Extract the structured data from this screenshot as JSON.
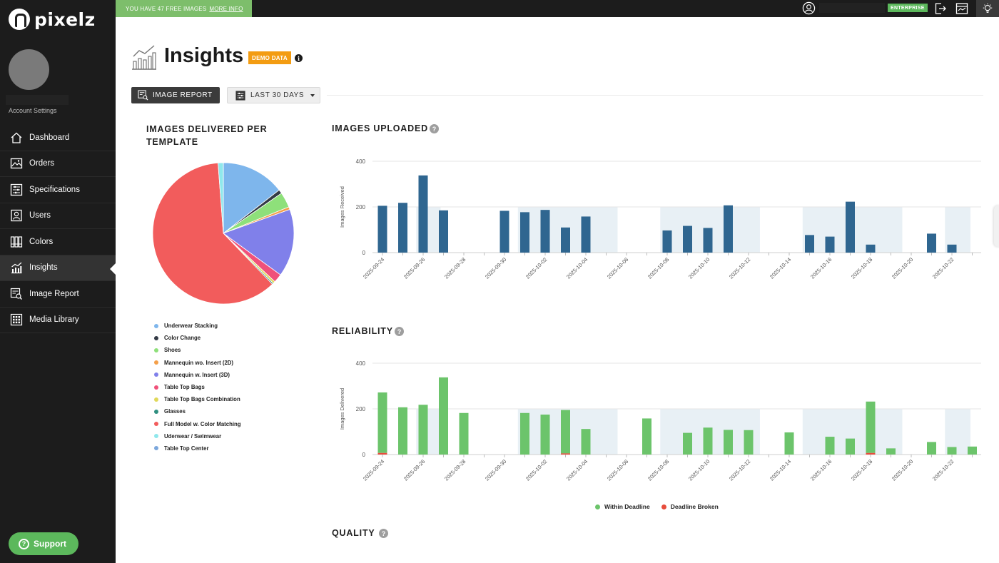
{
  "brand": {
    "name": "pixelz"
  },
  "sidebar": {
    "account_settings": "Account Settings",
    "items": [
      {
        "label": "Dashboard",
        "icon": "home-icon",
        "active": false
      },
      {
        "label": "Orders",
        "icon": "image-icon",
        "active": false
      },
      {
        "label": "Specifications",
        "icon": "sliders-icon",
        "active": false
      },
      {
        "label": "Users",
        "icon": "user-card-icon",
        "active": false
      },
      {
        "label": "Colors",
        "icon": "palette-icon",
        "active": false
      },
      {
        "label": "Insights",
        "icon": "chart-line-icon",
        "active": true
      },
      {
        "label": "Image Report",
        "icon": "image-report-icon",
        "active": false
      },
      {
        "label": "Media Library",
        "icon": "grid-icon",
        "active": false
      }
    ],
    "support_label": "Support"
  },
  "topbar": {
    "promo_text": "YOU HAVE 47 FREE IMAGES",
    "promo_link": "MORE INFO",
    "plan_badge": "ENTERPRISE"
  },
  "header": {
    "title": "Insights",
    "demo_badge": "DEMO DATA",
    "report_button": "IMAGE REPORT",
    "range_button": "LAST 30 DAYS"
  },
  "colors": {
    "bar_blue": "#2f6690",
    "bar_green": "#6cc46b",
    "bar_red": "#e74c3c",
    "band": "#e8f0f5"
  },
  "chart_data": [
    {
      "type": "pie",
      "title": "IMAGES DELIVERED PER TEMPLATE",
      "slices": [
        {
          "label": "Underwear Stacking",
          "value": 14.5,
          "color": "#7eb6ec"
        },
        {
          "label": "Color Change",
          "value": 0.9,
          "color": "#333a45"
        },
        {
          "label": "Shoes",
          "value": 3.5,
          "color": "#8ee07a"
        },
        {
          "label": "Mannequin wo. Insert (2D)",
          "value": 0.6,
          "color": "#f4a04a"
        },
        {
          "label": "Mannequin w. Insert (3D)",
          "value": 15.5,
          "color": "#8080ea"
        },
        {
          "label": "Table Top Bags",
          "value": 2.0,
          "color": "#f0517a"
        },
        {
          "label": "Table Top Bags Combination",
          "value": 0.5,
          "color": "#e0d85a"
        },
        {
          "label": "Glasses",
          "value": 0.3,
          "color": "#2f8f80"
        },
        {
          "label": "Full Model w. Color Matching",
          "value": 61.0,
          "color": "#f25c5c"
        },
        {
          "label": "Uderwear / Swimwear",
          "value": 1.2,
          "color": "#8fe8ec"
        },
        {
          "label": "Table Top Center",
          "value": 0.0,
          "color": "#7ba7dc"
        }
      ]
    },
    {
      "type": "bar",
      "title": "IMAGES UPLOADED",
      "ylabel": "Images Received",
      "ylim": [
        0,
        400
      ],
      "yticks": [
        0,
        200,
        400
      ],
      "categories": [
        "2025-09-24",
        "2025-09-25",
        "2025-09-26",
        "2025-09-27",
        "2025-09-28",
        "2025-09-29",
        "2025-09-30",
        "2025-10-01",
        "2025-10-02",
        "2025-10-03",
        "2025-10-04",
        "2025-10-05",
        "2025-10-06",
        "2025-10-07",
        "2025-10-08",
        "2025-10-09",
        "2025-10-10",
        "2025-10-11",
        "2025-10-12",
        "2025-10-13",
        "2025-10-14",
        "2025-10-15",
        "2025-10-16",
        "2025-10-17",
        "2025-10-18",
        "2025-10-19",
        "2025-10-20",
        "2025-10-21",
        "2025-10-22",
        "2025-10-23"
      ],
      "xtick_labels": [
        "2025-09-24",
        "2025-09-26",
        "2025-09-28",
        "2025-09-30",
        "2025-10-02",
        "2025-10-04",
        "2025-10-06",
        "2025-10-08",
        "2025-10-10",
        "2025-10-12",
        "2025-10-14",
        "2025-10-16",
        "2025-10-18",
        "2025-10-20",
        "2025-10-22"
      ],
      "values": [
        205,
        218,
        338,
        185,
        0,
        0,
        183,
        177,
        187,
        110,
        158,
        0,
        0,
        0,
        97,
        117,
        108,
        207,
        0,
        0,
        0,
        77,
        70,
        223,
        35,
        0,
        0,
        83,
        35,
        0
      ]
    },
    {
      "type": "bar",
      "title": "RELIABILITY",
      "ylabel": "Images Delivered",
      "ylim": [
        0,
        400
      ],
      "yticks": [
        0,
        200,
        400
      ],
      "categories": [
        "2025-09-24",
        "2025-09-25",
        "2025-09-26",
        "2025-09-27",
        "2025-09-28",
        "2025-09-29",
        "2025-09-30",
        "2025-10-01",
        "2025-10-02",
        "2025-10-03",
        "2025-10-04",
        "2025-10-05",
        "2025-10-06",
        "2025-10-07",
        "2025-10-08",
        "2025-10-09",
        "2025-10-10",
        "2025-10-11",
        "2025-10-12",
        "2025-10-13",
        "2025-10-14",
        "2025-10-15",
        "2025-10-16",
        "2025-10-17",
        "2025-10-18",
        "2025-10-19",
        "2025-10-20",
        "2025-10-21",
        "2025-10-22",
        "2025-10-23"
      ],
      "xtick_labels": [
        "2025-09-24",
        "2025-09-26",
        "2025-09-28",
        "2025-09-30",
        "2025-10-02",
        "2025-10-04",
        "2025-10-06",
        "2025-10-08",
        "2025-10-10",
        "2025-10-12",
        "2025-10-14",
        "2025-10-16",
        "2025-10-18",
        "2025-10-20",
        "2025-10-22"
      ],
      "legend": [
        "Within Deadline",
        "Deadline Broken"
      ],
      "series": [
        {
          "name": "Within Deadline",
          "values": [
            265,
            207,
            218,
            338,
            182,
            0,
            0,
            182,
            175,
            190,
            112,
            0,
            0,
            158,
            0,
            95,
            118,
            108,
            107,
            0,
            97,
            0,
            78,
            70,
            225,
            27,
            0,
            55,
            33,
            35
          ]
        },
        {
          "name": "Deadline Broken",
          "values": [
            7,
            0,
            0,
            0,
            0,
            0,
            0,
            0,
            0,
            5,
            0,
            0,
            0,
            0,
            0,
            0,
            0,
            0,
            0,
            0,
            0,
            0,
            0,
            0,
            7,
            0,
            0,
            0,
            0,
            0
          ]
        }
      ]
    }
  ],
  "sections": {
    "uploaded_title": "IMAGES UPLOADED",
    "reliability_title": "RELIABILITY",
    "quality_title": "QUALITY",
    "help_glyph": "?"
  }
}
